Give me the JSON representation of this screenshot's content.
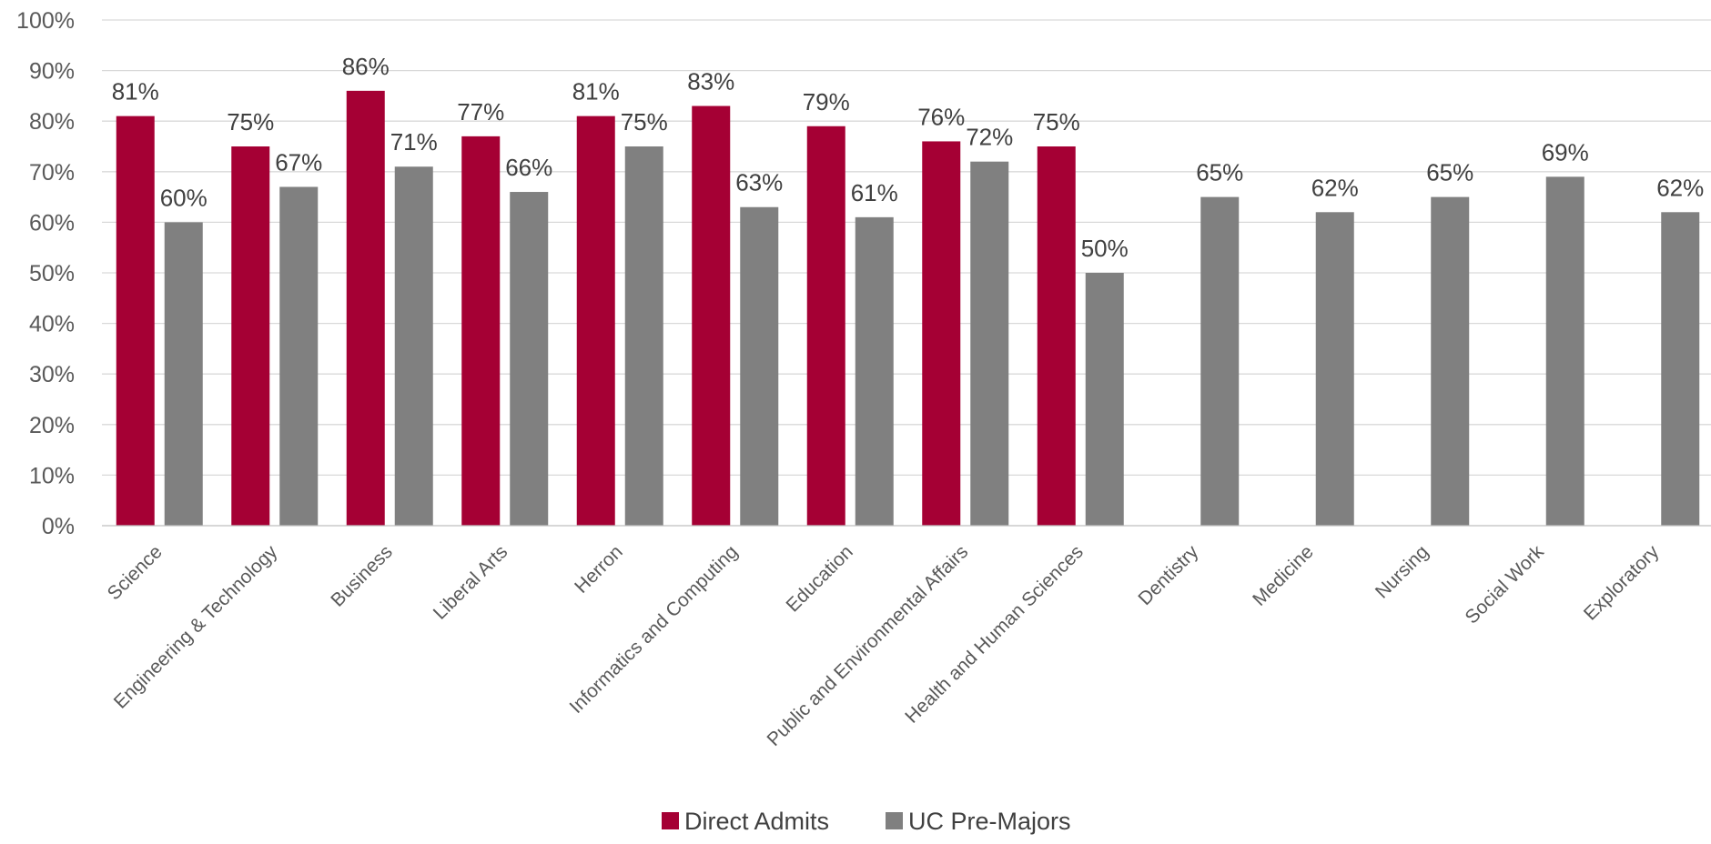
{
  "chart_data": {
    "type": "bar",
    "title": "",
    "xlabel": "",
    "ylabel": "",
    "ylim": [
      0,
      100
    ],
    "y_ticks": [
      "0%",
      "10%",
      "20%",
      "30%",
      "40%",
      "50%",
      "60%",
      "70%",
      "80%",
      "90%",
      "100%"
    ],
    "grid": true,
    "legend_position": "bottom",
    "categories": [
      "Science",
      "Engineering & Technology",
      "Business",
      "Liberal Arts",
      "Herron",
      "Informatics and Computing",
      "Education",
      "Public and Environmental Affairs",
      "Health and Human Sciences",
      "Dentistry",
      "Medicine",
      "Nursing",
      "Social Work",
      "Exploratory"
    ],
    "series": [
      {
        "name": "Direct Admits",
        "color": "#a50034",
        "values": [
          81,
          75,
          86,
          77,
          81,
          83,
          79,
          76,
          75,
          null,
          null,
          null,
          null,
          null
        ],
        "labels": [
          "81%",
          "75%",
          "86%",
          "77%",
          "81%",
          "83%",
          "79%",
          "76%",
          "75%",
          null,
          null,
          null,
          null,
          null
        ]
      },
      {
        "name": "UC Pre-Majors",
        "color": "#808080",
        "values": [
          60,
          67,
          71,
          66,
          75,
          63,
          61,
          72,
          50,
          65,
          62,
          65,
          69,
          62
        ],
        "labels": [
          "60%",
          "67%",
          "71%",
          "66%",
          "75%",
          "63%",
          "61%",
          "72%",
          "50%",
          "65%",
          "62%",
          "65%",
          "69%",
          "62%"
        ]
      }
    ]
  }
}
